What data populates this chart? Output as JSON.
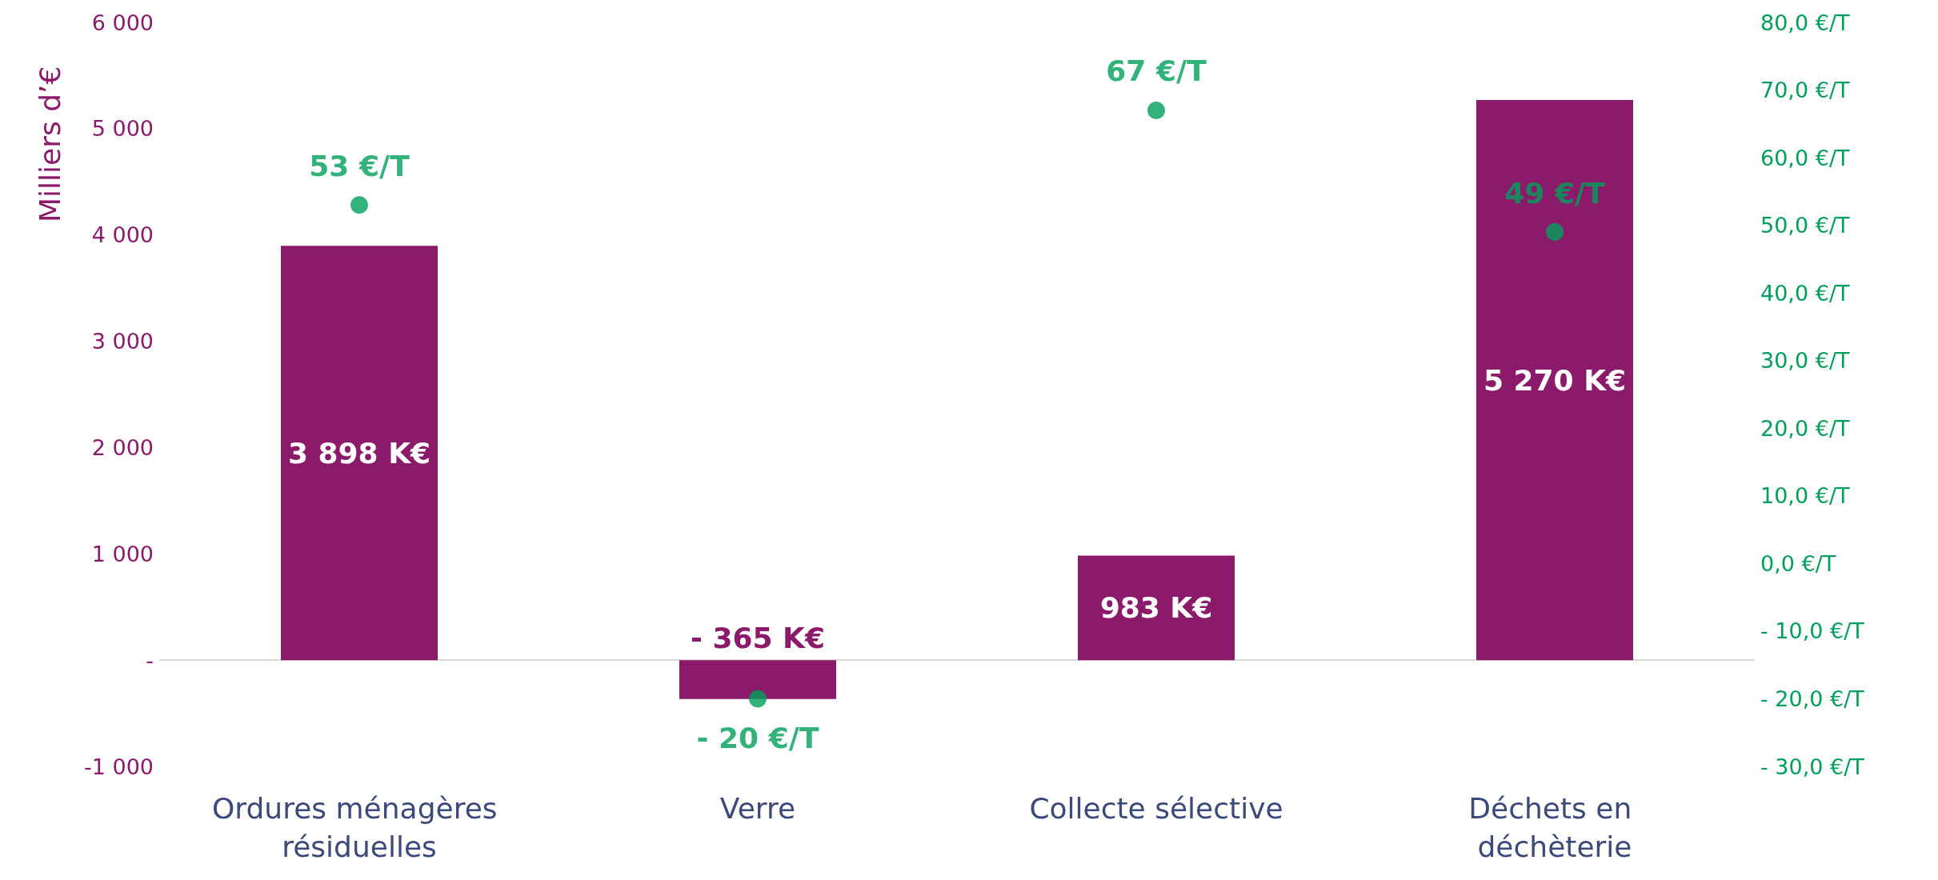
{
  "chart_data": {
    "type": "bar",
    "ylabel": "Milliers d’€",
    "categories": [
      "Ordures ménagères résiduelles",
      "Verre",
      "Collecte sélective",
      "Déchets en déchèterie"
    ],
    "series": [
      {
        "color": "#8b1a6b",
        "values": [
          3898,
          -365,
          983,
          5270
        ],
        "value_labels": [
          "3 898 K€",
          "- 365 K€",
          "983 K€",
          "5 270 K€"
        ]
      },
      {
        "type": "scatter",
        "axis": "y2",
        "color": "#00a05a",
        "values": [
          53,
          -20,
          67,
          49
        ],
        "value_labels": [
          "53 €/T",
          "- 20 €/T",
          "67 €/T",
          "49 €/T"
        ]
      }
    ],
    "marker": "circle",
    "ylim": [
      -1000,
      6000
    ],
    "yticks": [
      {
        "value": -1000,
        "label": "-1 000"
      },
      {
        "value": 0,
        "label": "-"
      },
      {
        "value": 1000,
        "label": "1 000"
      },
      {
        "value": 2000,
        "label": "2 000"
      },
      {
        "value": 3000,
        "label": "3 000"
      },
      {
        "value": 4000,
        "label": "4 000"
      },
      {
        "value": 5000,
        "label": "5 000"
      },
      {
        "value": 6000,
        "label": "6 000"
      }
    ],
    "y2lim": [
      -30,
      80
    ],
    "y2ticks": [
      {
        "value": -30,
        "label": "- 30,0 €/T"
      },
      {
        "value": -20,
        "label": "- 20,0 €/T"
      },
      {
        "value": -10,
        "label": "- 10,0 €/T"
      },
      {
        "value": 0,
        "label": "0,0 €/T"
      },
      {
        "value": 10,
        "label": "10,0 €/T"
      },
      {
        "value": 20,
        "label": "20,0 €/T"
      },
      {
        "value": 30,
        "label": "30,0 €/T"
      },
      {
        "value": 40,
        "label": "40,0 €/T"
      },
      {
        "value": 50,
        "label": "50,0 €/T"
      },
      {
        "value": 60,
        "label": "60,0 €/T"
      },
      {
        "value": 70,
        "label": "70,0 €/T"
      },
      {
        "value": 80,
        "label": "80,0 €/T"
      }
    ]
  }
}
